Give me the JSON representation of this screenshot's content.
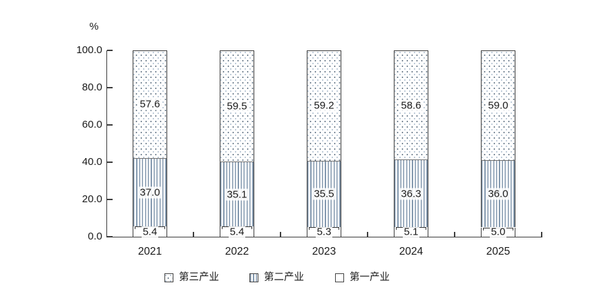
{
  "chart_data": {
    "type": "bar",
    "stacked": true,
    "orientation": "vertical",
    "y_axis_unit": "%",
    "categories": [
      "2021",
      "2022",
      "2023",
      "2024",
      "2025"
    ],
    "series": [
      {
        "name": "第一产业",
        "pattern": "plain",
        "values": [
          5.4,
          5.4,
          5.3,
          5.1,
          5.0
        ],
        "labels": [
          "5.4",
          "5.4",
          "5.3",
          "5.1",
          "5.0"
        ]
      },
      {
        "name": "第二产业",
        "pattern": "vertical-stripes",
        "values": [
          37.0,
          35.1,
          35.5,
          36.3,
          36.0
        ],
        "labels": [
          "37.0",
          "35.1",
          "35.5",
          "36.3",
          "36.0"
        ]
      },
      {
        "name": "第三产业",
        "pattern": "dots",
        "values": [
          57.6,
          59.5,
          59.2,
          58.6,
          59.0
        ],
        "labels": [
          "57.6",
          "59.5",
          "59.2",
          "58.6",
          "59.0"
        ]
      }
    ],
    "ylim": [
      0,
      100
    ],
    "ytick_labels_top_to_bottom": [
      "100.0",
      "80.0",
      "60.0",
      "40.0",
      "20.0",
      "0.0"
    ],
    "grid": false,
    "legend": {
      "position": "bottom",
      "entries": [
        {
          "label": "第三产业",
          "pattern": "dots"
        },
        {
          "label": "第二产业",
          "pattern": "vertical-stripes"
        },
        {
          "label": "第一产业",
          "pattern": "plain"
        }
      ]
    },
    "colors": {
      "axis": "#3d3d3d",
      "text": "#1a1a1a",
      "bar_border": "#3d3d3d",
      "stripe": "#8499af",
      "dot_dark": "#5c6e80",
      "dot_light": "#b3c2d2",
      "background": "#ffffff"
    }
  }
}
